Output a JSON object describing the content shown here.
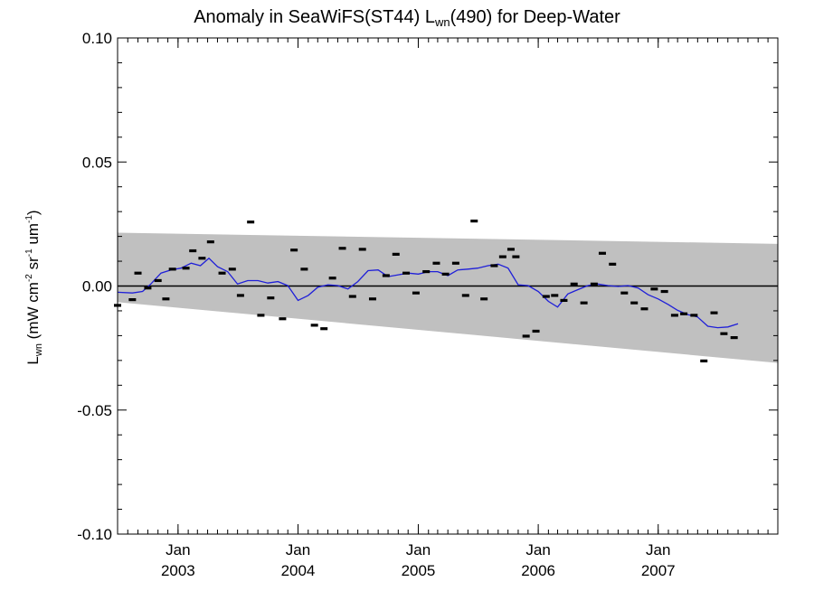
{
  "chart_data": {
    "type": "scatter",
    "title": {
      "prefix": "Anomaly in SeaWiFS(ST44) L",
      "subscript": "wn",
      "suffix": "(490) for Deep-Water"
    },
    "ylabel": {
      "base": "L",
      "base_sub": "wn",
      "unit_1": " (mW cm",
      "exp_1": "-2",
      "unit_2": " sr",
      "exp_2": "-1",
      "unit_3": " um",
      "exp_3": "-1",
      "close": ")"
    },
    "ylim": [
      -0.1,
      0.1
    ],
    "yticks": [
      {
        "value": 0.1,
        "label": "0.10"
      },
      {
        "value": 0.05,
        "label": "0.05"
      },
      {
        "value": 0.0,
        "label": "0.00"
      },
      {
        "value": -0.05,
        "label": "-0.05"
      },
      {
        "value": -0.1,
        "label": "-0.10"
      }
    ],
    "xlim": [
      "2002-07-01",
      "2007-12-31"
    ],
    "xticks": [
      {
        "date": "2003-01-01",
        "month": "Jan",
        "year": "2003"
      },
      {
        "date": "2004-01-01",
        "month": "Jan",
        "year": "2004"
      },
      {
        "date": "2005-01-01",
        "month": "Jan",
        "year": "2005"
      },
      {
        "date": "2006-01-01",
        "month": "Jan",
        "year": "2006"
      },
      {
        "date": "2007-01-01",
        "month": "Jan",
        "year": "2007"
      }
    ],
    "zero_line": 0,
    "uncertainty_band": {
      "lower": [
        [
          "2002-07-01",
          -0.0065
        ],
        [
          "2007-12-31",
          -0.031
        ]
      ],
      "upper": [
        [
          "2002-07-01",
          0.0215
        ],
        [
          "2007-12-31",
          0.017
        ]
      ],
      "color": "#c0c0c0"
    },
    "series": [
      {
        "marker": "dash",
        "color": "#000000",
        "points": [
          [
            "2002-07-01",
            -0.0078
          ],
          [
            "2002-08-15",
            -0.0055
          ],
          [
            "2002-09-01",
            0.0052
          ],
          [
            "2002-10-01",
            -0.0008
          ],
          [
            "2002-11-01",
            0.0022
          ],
          [
            "2002-11-25",
            -0.0052
          ],
          [
            "2002-12-15",
            0.0068
          ],
          [
            "2003-01-25",
            0.0072
          ],
          [
            "2003-02-15",
            0.0142
          ],
          [
            "2003-03-15",
            0.0112
          ],
          [
            "2003-04-10",
            0.0178
          ],
          [
            "2003-05-15",
            0.0052
          ],
          [
            "2003-06-15",
            0.0068
          ],
          [
            "2003-07-10",
            -0.0038
          ],
          [
            "2003-08-10",
            0.0258
          ],
          [
            "2003-09-10",
            -0.0118
          ],
          [
            "2003-10-10",
            -0.0048
          ],
          [
            "2003-11-15",
            -0.0132
          ],
          [
            "2003-12-20",
            0.0145
          ],
          [
            "2004-01-20",
            0.0068
          ],
          [
            "2004-02-20",
            -0.0158
          ],
          [
            "2004-03-20",
            -0.0172
          ],
          [
            "2004-04-15",
            0.0032
          ],
          [
            "2004-05-15",
            0.0152
          ],
          [
            "2004-06-15",
            -0.0042
          ],
          [
            "2004-07-15",
            0.0148
          ],
          [
            "2004-08-15",
            -0.0052
          ],
          [
            "2004-09-25",
            0.0042
          ],
          [
            "2004-10-25",
            0.0128
          ],
          [
            "2004-11-25",
            0.0052
          ],
          [
            "2004-12-25",
            -0.0028
          ],
          [
            "2005-01-25",
            0.0058
          ],
          [
            "2005-02-25",
            0.0092
          ],
          [
            "2005-03-25",
            0.0048
          ],
          [
            "2005-04-25",
            0.0092
          ],
          [
            "2005-05-25",
            -0.0038
          ],
          [
            "2005-06-20",
            0.0262
          ],
          [
            "2005-07-20",
            -0.0052
          ],
          [
            "2005-08-20",
            0.0082
          ],
          [
            "2005-09-15",
            0.0118
          ],
          [
            "2005-10-10",
            0.0148
          ],
          [
            "2005-10-25",
            0.0118
          ],
          [
            "2005-11-25",
            -0.0202
          ],
          [
            "2005-12-25",
            -0.0182
          ],
          [
            "2006-01-25",
            -0.0042
          ],
          [
            "2006-02-20",
            -0.0038
          ],
          [
            "2006-03-20",
            -0.0058
          ],
          [
            "2006-04-20",
            0.0008
          ],
          [
            "2006-05-20",
            -0.0068
          ],
          [
            "2006-06-20",
            0.0008
          ],
          [
            "2006-07-15",
            0.0132
          ],
          [
            "2006-08-15",
            0.0088
          ],
          [
            "2006-09-20",
            -0.0028
          ],
          [
            "2006-10-20",
            -0.0068
          ],
          [
            "2006-11-20",
            -0.0092
          ],
          [
            "2006-12-20",
            -0.0012
          ],
          [
            "2007-01-20",
            -0.0022
          ],
          [
            "2007-02-20",
            -0.0118
          ],
          [
            "2007-03-20",
            -0.0112
          ],
          [
            "2007-04-20",
            -0.0118
          ],
          [
            "2007-05-20",
            -0.0302
          ],
          [
            "2007-06-20",
            -0.0108
          ],
          [
            "2007-07-20",
            -0.0192
          ],
          [
            "2007-08-20",
            -0.0208
          ]
        ]
      },
      {
        "marker": "line",
        "color": "#1f1fd8",
        "points": [
          [
            "2002-07-01",
            -0.0025
          ],
          [
            "2002-08-15",
            -0.0028
          ],
          [
            "2002-09-15",
            -0.0022
          ],
          [
            "2002-10-10",
            0.0008
          ],
          [
            "2002-11-10",
            0.0052
          ],
          [
            "2002-12-10",
            0.0065
          ],
          [
            "2003-01-10",
            0.0072
          ],
          [
            "2003-02-10",
            0.0092
          ],
          [
            "2003-03-10",
            0.0082
          ],
          [
            "2003-04-05",
            0.0112
          ],
          [
            "2003-05-01",
            0.0078
          ],
          [
            "2003-06-01",
            0.0058
          ],
          [
            "2003-07-01",
            0.0008
          ],
          [
            "2003-08-01",
            0.0022
          ],
          [
            "2003-09-01",
            0.0022
          ],
          [
            "2003-10-01",
            0.0012
          ],
          [
            "2003-11-01",
            0.0018
          ],
          [
            "2003-12-01",
            0.0002
          ],
          [
            "2004-01-01",
            -0.0058
          ],
          [
            "2004-02-01",
            -0.0038
          ],
          [
            "2004-03-01",
            -0.0005
          ],
          [
            "2004-04-01",
            0.0005
          ],
          [
            "2004-05-01",
            0.0002
          ],
          [
            "2004-06-01",
            -0.0012
          ],
          [
            "2004-07-01",
            0.0018
          ],
          [
            "2004-08-01",
            0.0062
          ],
          [
            "2004-09-01",
            0.0065
          ],
          [
            "2004-10-01",
            0.0038
          ],
          [
            "2004-11-01",
            0.0045
          ],
          [
            "2004-12-01",
            0.0052
          ],
          [
            "2005-01-01",
            0.0048
          ],
          [
            "2005-02-01",
            0.0058
          ],
          [
            "2005-03-01",
            0.0058
          ],
          [
            "2005-04-01",
            0.0042
          ],
          [
            "2005-05-01",
            0.0065
          ],
          [
            "2005-06-01",
            0.0068
          ],
          [
            "2005-07-01",
            0.0072
          ],
          [
            "2005-08-01",
            0.0082
          ],
          [
            "2005-09-01",
            0.0088
          ],
          [
            "2005-10-01",
            0.0072
          ],
          [
            "2005-11-01",
            0.0005
          ],
          [
            "2005-12-01",
            0.0002
          ],
          [
            "2006-01-01",
            -0.0022
          ],
          [
            "2006-02-01",
            -0.0062
          ],
          [
            "2006-03-01",
            -0.0085
          ],
          [
            "2006-04-01",
            -0.0032
          ],
          [
            "2006-05-01",
            -0.0015
          ],
          [
            "2006-06-01",
            0.0002
          ],
          [
            "2006-07-01",
            0.0008
          ],
          [
            "2006-08-01",
            0.0002
          ],
          [
            "2006-09-01",
            -0.0002
          ],
          [
            "2006-10-01",
            0.0002
          ],
          [
            "2006-11-01",
            -0.0008
          ],
          [
            "2006-12-01",
            -0.0035
          ],
          [
            "2007-01-01",
            -0.0052
          ],
          [
            "2007-02-01",
            -0.0075
          ],
          [
            "2007-03-01",
            -0.0098
          ],
          [
            "2007-04-01",
            -0.0115
          ],
          [
            "2007-05-01",
            -0.0125
          ],
          [
            "2007-06-01",
            -0.0162
          ],
          [
            "2007-07-01",
            -0.0168
          ],
          [
            "2007-08-01",
            -0.0165
          ],
          [
            "2007-09-01",
            -0.0152
          ]
        ]
      }
    ],
    "grid": false,
    "legend": "none"
  }
}
